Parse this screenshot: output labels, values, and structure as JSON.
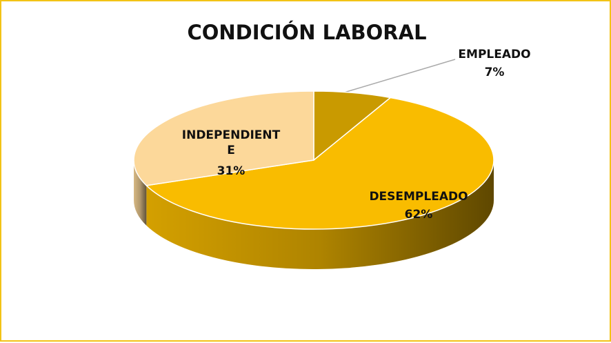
{
  "chart_data": {
    "type": "pie3d",
    "title": "CONDICIÓN LABORAL",
    "categories": [
      "EMPLEADO",
      "DESEMPLEADO",
      "INDEPENDIENTE"
    ],
    "values": [
      7,
      62,
      31
    ],
    "value_labels": [
      "7%",
      "62%",
      "31%"
    ],
    "colors": [
      "#c99a00",
      "#f9bc00",
      "#fcd89a"
    ]
  }
}
